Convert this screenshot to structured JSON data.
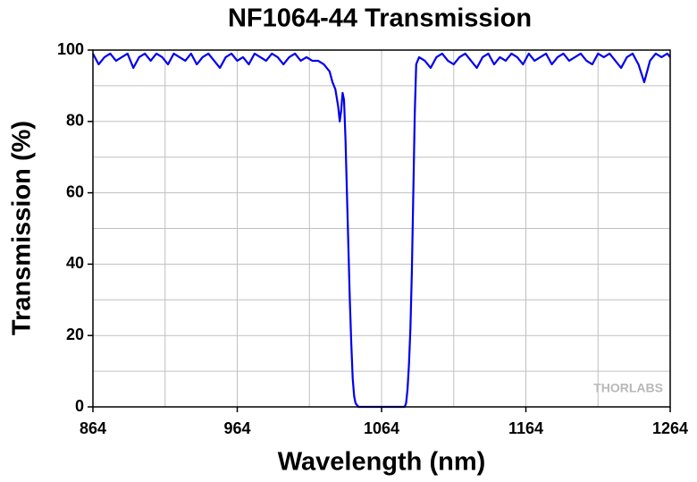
{
  "chart_data": {
    "type": "line",
    "title": "NF1064-44 Transmission",
    "x_label": "Wavelength (nm)",
    "y_label": "Transmission (%)",
    "watermark": "THORLABS",
    "xlim": [
      864,
      1264
    ],
    "xticks": [
      864,
      964,
      1064,
      1164,
      1264
    ],
    "xgrid": [
      914,
      1014,
      1114,
      1214
    ],
    "ylim": [
      0,
      100
    ],
    "yticks": [
      0,
      20,
      40,
      60,
      80,
      100
    ],
    "ygrid": [
      10,
      30,
      50,
      70,
      90
    ],
    "grid": true,
    "series": [
      {
        "name": "NF1064-44",
        "color": "#0000ee",
        "x": [
          864,
          868,
          872,
          876,
          880,
          884,
          888,
          892,
          896,
          900,
          904,
          908,
          912,
          916,
          920,
          924,
          928,
          932,
          936,
          940,
          944,
          948,
          952,
          956,
          960,
          964,
          968,
          972,
          976,
          980,
          984,
          988,
          992,
          996,
          1000,
          1004,
          1008,
          1012,
          1016,
          1020,
          1024,
          1028,
          1030,
          1032,
          1034,
          1035,
          1036,
          1037,
          1038,
          1039,
          1040,
          1041,
          1042,
          1043,
          1044,
          1045,
          1046,
          1048,
          1056,
          1064,
          1072,
          1080,
          1081,
          1082,
          1083,
          1084,
          1085,
          1086,
          1087,
          1088,
          1090,
          1094,
          1098,
          1102,
          1106,
          1110,
          1114,
          1118,
          1122,
          1126,
          1130,
          1134,
          1138,
          1142,
          1146,
          1150,
          1154,
          1158,
          1162,
          1166,
          1170,
          1174,
          1178,
          1182,
          1186,
          1190,
          1194,
          1198,
          1202,
          1206,
          1210,
          1214,
          1218,
          1222,
          1226,
          1230,
          1234,
          1238,
          1242,
          1246,
          1250,
          1254,
          1258,
          1262,
          1264
        ],
        "values": [
          99,
          96,
          98,
          99,
          97,
          98,
          99,
          95,
          98,
          99,
          97,
          99,
          98,
          96,
          99,
          98,
          97,
          99,
          96,
          98,
          99,
          97,
          95,
          98,
          99,
          97,
          98,
          96,
          99,
          98,
          97,
          99,
          98,
          96,
          98,
          99,
          97,
          98,
          97,
          97,
          96,
          94,
          91,
          89,
          84,
          80,
          83,
          88,
          86,
          75,
          60,
          45,
          30,
          18,
          8,
          3,
          1,
          0,
          0,
          0,
          0,
          0,
          1,
          5,
          12,
          22,
          38,
          60,
          82,
          96,
          98,
          97,
          95,
          98,
          99,
          97,
          96,
          98,
          99,
          97,
          95,
          98,
          99,
          96,
          98,
          97,
          99,
          98,
          96,
          99,
          97,
          98,
          99,
          96,
          98,
          99,
          97,
          98,
          99,
          97,
          96,
          99,
          98,
          99,
          97,
          95,
          98,
          99,
          96,
          91,
          97,
          99,
          98,
          99,
          98
        ]
      }
    ]
  }
}
